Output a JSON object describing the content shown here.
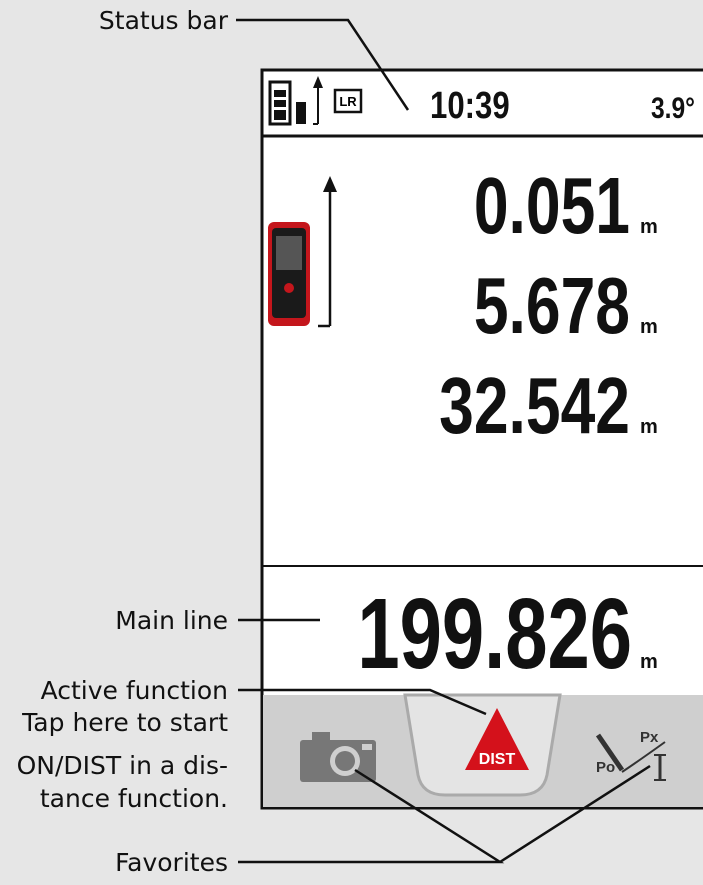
{
  "callouts": {
    "status_bar": "Status bar",
    "main_line": "Main line",
    "active_function": [
      "Active function",
      "Tap here to start",
      "ON/DIST in a dis-",
      "tance function."
    ],
    "favorites": "Favorites"
  },
  "status_bar": {
    "indicator": "LR",
    "time": "10:39",
    "temperature": "3.9°"
  },
  "measurements": [
    {
      "value": "0.051",
      "unit": "m"
    },
    {
      "value": "5.678",
      "unit": "m"
    },
    {
      "value": "32.542",
      "unit": "m"
    }
  ],
  "main_line": {
    "value": "199.826",
    "unit": "m"
  },
  "toolbar": {
    "active_function": "DIST",
    "favorite_labels": [
      "Px",
      "Po"
    ]
  }
}
